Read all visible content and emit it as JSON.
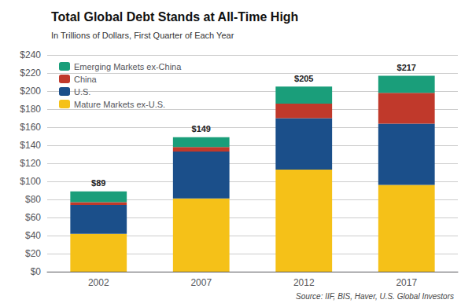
{
  "chart_data": {
    "type": "bar",
    "title": "Total Global Debt Stands at All-Time High",
    "subtitle": "In Trillions of Dollars, First Quarter of Each Year",
    "source": "Source: IIF, BIS, Haver, U.S. Global Investors",
    "categories": [
      "2002",
      "2007",
      "2012",
      "2017"
    ],
    "series": [
      {
        "name": "Mature Markets ex-U.S.",
        "color": "#F5C118",
        "values": [
          42,
          81,
          113,
          96
        ]
      },
      {
        "name": "U.S.",
        "color": "#1B4F8A",
        "values": [
          32,
          52,
          57,
          68
        ]
      },
      {
        "name": "China",
        "color": "#C0392B",
        "values": [
          3,
          5,
          16,
          34
        ]
      },
      {
        "name": "Emerging Markets ex-China",
        "color": "#1A9E7A",
        "values": [
          12,
          11,
          19,
          19
        ]
      }
    ],
    "totals": {
      "values": [
        89,
        149,
        205,
        217
      ],
      "value_labels": [
        "$89",
        "$149",
        "$205",
        "$217"
      ]
    },
    "stacked": true,
    "ylim": [
      0,
      240
    ],
    "yticks": [
      {
        "value": 0,
        "label": "$0"
      },
      {
        "value": 20,
        "label": "$20"
      },
      {
        "value": 40,
        "label": "$40"
      },
      {
        "value": 60,
        "label": "$60"
      },
      {
        "value": 80,
        "label": "$80"
      },
      {
        "value": 100,
        "label": "$100"
      },
      {
        "value": 120,
        "label": "$120"
      },
      {
        "value": 140,
        "label": "$140"
      },
      {
        "value": 160,
        "label": "$160"
      },
      {
        "value": 180,
        "label": "$180"
      },
      {
        "value": 200,
        "label": "$200"
      },
      {
        "value": 220,
        "label": "$220"
      },
      {
        "value": 240,
        "label": "$240"
      }
    ],
    "grid": true,
    "legend": "upper left"
  }
}
